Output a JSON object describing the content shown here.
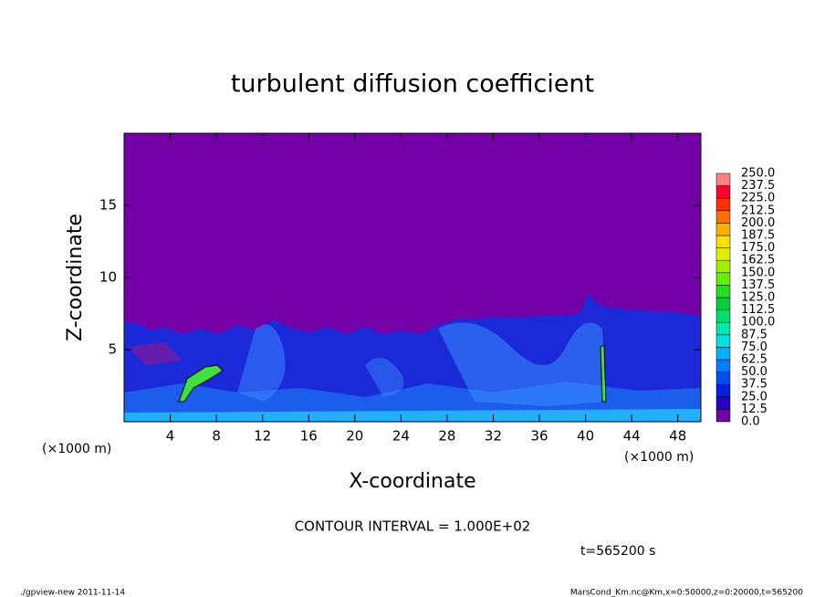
{
  "chart_data": {
    "type": "heatmap",
    "title": "turbulent diffusion coefficient",
    "x_label": "X-coordinate",
    "y_label": "Z-coordinate",
    "x_unit": "(×1000 m)",
    "y_unit": "(×1000 m)",
    "xlim": [
      0,
      50
    ],
    "xticks": [
      4,
      8,
      12,
      16,
      20,
      24,
      28,
      32,
      36,
      40,
      44,
      48
    ],
    "ylim": [
      0,
      20
    ],
    "yticks": [
      5,
      10,
      15
    ],
    "field_background": "#7400a8",
    "colorbar": {
      "levels": [
        {
          "value": 0,
          "label": "0.0"
        },
        {
          "value": 12.5,
          "label": "12.5"
        },
        {
          "value": 25,
          "label": "25.0"
        },
        {
          "value": 37.5,
          "label": "37.5"
        },
        {
          "value": 50,
          "label": "50.0"
        },
        {
          "value": 62.5,
          "label": "62.5"
        },
        {
          "value": 75,
          "label": "75.0"
        },
        {
          "value": 87.5,
          "label": "87.5"
        },
        {
          "value": 100,
          "label": "100.0"
        },
        {
          "value": 112.5,
          "label": "112.5"
        },
        {
          "value": 125,
          "label": "125.0"
        },
        {
          "value": 137.5,
          "label": "137.5"
        },
        {
          "value": 150,
          "label": "150.0"
        },
        {
          "value": 162.5,
          "label": "162.5"
        },
        {
          "value": 175,
          "label": "175.0"
        },
        {
          "value": 187.5,
          "label": "187.5"
        },
        {
          "value": 200,
          "label": "200.0"
        },
        {
          "value": 212.5,
          "label": "212.5"
        },
        {
          "value": 225,
          "label": "225.0"
        },
        {
          "value": 237.5,
          "label": "237.5"
        },
        {
          "value": 250,
          "label": "250.0"
        }
      ],
      "colors": [
        "#7400a8",
        "#2a00c8",
        "#0020e0",
        "#0050f0",
        "#0080ff",
        "#00b0ff",
        "#00e0e0",
        "#00e8b0",
        "#00e070",
        "#00d040",
        "#20e020",
        "#60f000",
        "#a0f000",
        "#e0f000",
        "#ffe000",
        "#ffb000",
        "#ff7000",
        "#ff3000",
        "#ff0030",
        "#ff8080"
      ]
    },
    "contour_interval": "CONTOUR INTERVAL = 1.000E+02",
    "time_label": "t=565200 s",
    "footer_left": "./gpview-new  2011-11-14",
    "footer_right": "MarsCond_Km.nc@Km,x=0:50000,z=0:20000,t=565200"
  }
}
